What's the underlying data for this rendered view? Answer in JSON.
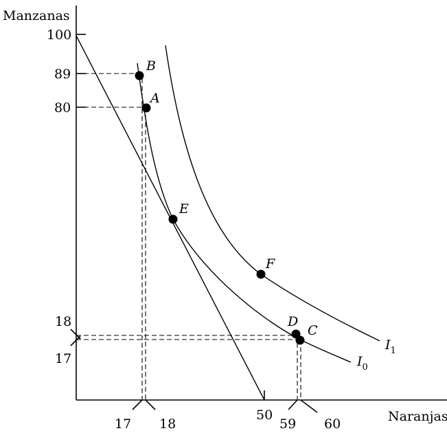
{
  "axes": {
    "y_title": "Manzanas",
    "x_title": "Naranjas"
  },
  "y_ticks": [
    "100",
    "89",
    "80",
    "18",
    "17"
  ],
  "x_ticks": [
    "17",
    "18",
    "50",
    "59",
    "60"
  ],
  "budget_line": {
    "y_intercept": 100,
    "x_intercept": 50
  },
  "points": [
    {
      "label": "B",
      "x": 17,
      "y": 89
    },
    {
      "label": "A",
      "x": 18,
      "y": 80
    },
    {
      "label": "E",
      "x": 25,
      "y": 50
    },
    {
      "label": "F",
      "x": 49,
      "y": 36
    },
    {
      "label": "D",
      "x": 59,
      "y": 18
    },
    {
      "label": "C",
      "x": 60,
      "y": 17
    }
  ],
  "curves": {
    "i0": {
      "letter": "I",
      "sub": "0"
    },
    "i1": {
      "letter": "I",
      "sub": "1"
    }
  }
}
